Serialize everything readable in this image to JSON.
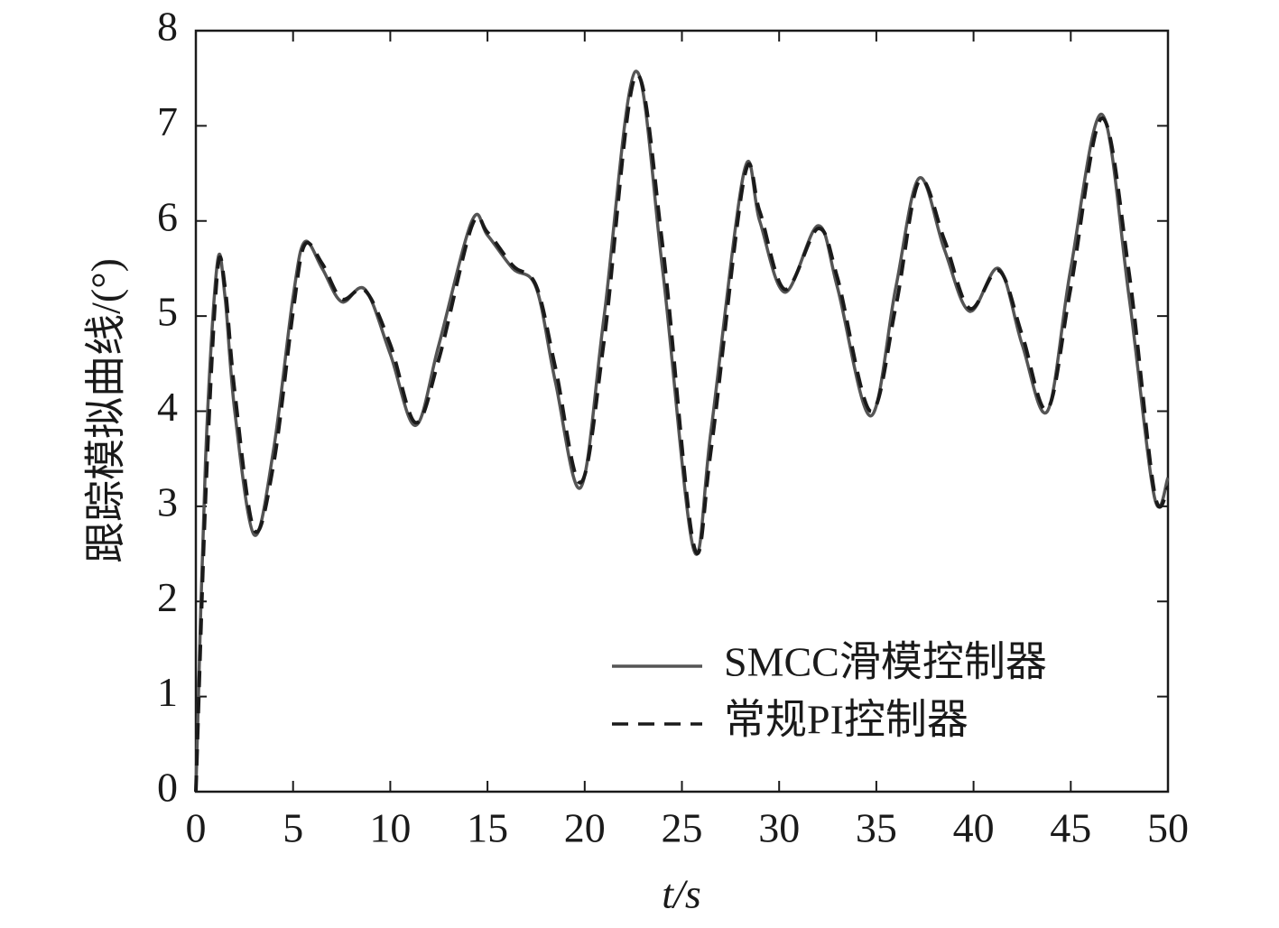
{
  "chart_data": {
    "type": "line",
    "xlabel": "t/s",
    "ylabel": "跟踪模拟曲线/(°)",
    "x": [
      0,
      0.5,
      1.1,
      1.5,
      2,
      3,
      4,
      5,
      5.6,
      6.5,
      7.5,
      8.7,
      10,
      11.3,
      12.5,
      14.2,
      15,
      16.3,
      17.5,
      18.5,
      19.8,
      21,
      22.6,
      24,
      25.6,
      26.5,
      28.2,
      29,
      30.3,
      32,
      33,
      34.7,
      36,
      37.2,
      38.5,
      39.8,
      41.3,
      42.5,
      43.8,
      45,
      46.6,
      48,
      49.3,
      50
    ],
    "series": [
      {
        "name": "SMCC滑模控制器",
        "color": "#555555",
        "dash": false,
        "values": [
          0,
          3.5,
          5.55,
          5.2,
          4.0,
          2.7,
          3.6,
          5.2,
          5.78,
          5.5,
          5.15,
          5.28,
          4.6,
          3.85,
          4.7,
          6.0,
          5.85,
          5.5,
          5.3,
          4.3,
          3.2,
          5.0,
          7.57,
          5.5,
          2.55,
          3.8,
          6.52,
          6.0,
          5.25,
          5.95,
          5.3,
          3.95,
          5.3,
          6.45,
          5.7,
          5.05,
          5.5,
          4.7,
          4.0,
          5.5,
          7.12,
          5.2,
          3.1,
          3.3
        ]
      },
      {
        "name": "常规PI控制器",
        "color": "#1a1a1a",
        "dash": true,
        "values": [
          0,
          3.1,
          5.45,
          5.3,
          4.2,
          2.75,
          3.45,
          5.05,
          5.75,
          5.55,
          5.18,
          5.27,
          4.7,
          3.88,
          4.55,
          5.95,
          5.88,
          5.53,
          5.32,
          4.45,
          3.25,
          4.75,
          7.52,
          5.75,
          2.6,
          3.6,
          6.45,
          6.1,
          5.28,
          5.92,
          5.4,
          4.0,
          5.1,
          6.42,
          5.8,
          5.08,
          5.48,
          4.8,
          4.02,
          5.3,
          7.08,
          5.45,
          3.15,
          3.2
        ]
      }
    ],
    "xlim": [
      0,
      50
    ],
    "xticks": [
      0,
      5,
      10,
      15,
      20,
      25,
      30,
      35,
      40,
      45,
      50
    ],
    "ylim": [
      0,
      8
    ],
    "yticks": [
      0,
      1,
      2,
      3,
      4,
      5,
      6,
      7,
      8
    ],
    "legend": "lower right"
  }
}
